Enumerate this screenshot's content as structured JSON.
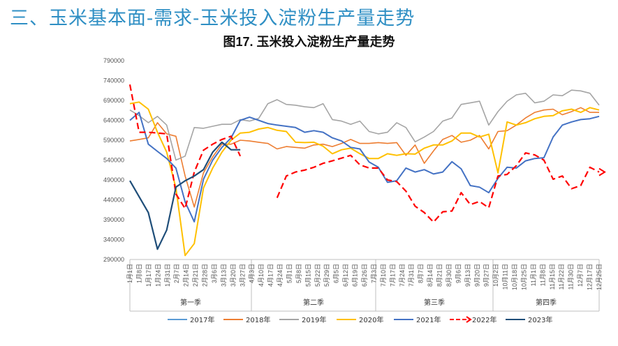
{
  "slide_title": "三、玉米基本面-需求-玉米投入淀粉生产量走势",
  "chart_data": {
    "type": "line",
    "title": "图17. 玉米投入淀粉生产量走势",
    "xlabel": "",
    "ylabel": "",
    "ylim": [
      290000,
      790000
    ],
    "y_ticks": [
      "290000",
      "340000",
      "390000",
      "440000",
      "490000",
      "540000",
      "590000",
      "640000",
      "690000",
      "740000",
      "790000"
    ],
    "grid": false,
    "legend_position": "bottom",
    "quarters": [
      "第一季",
      "第二季",
      "第三季",
      "第四季"
    ],
    "x": [
      "1月1日",
      "1月8日",
      "1月17日",
      "1月24日",
      "1月31日",
      "2月7日",
      "2月14日",
      "2月21日",
      "2月28日",
      "3月6日",
      "3月13日",
      "3月20日",
      "3月27日",
      "4月3日",
      "4月10日",
      "4月17日",
      "4月24日",
      "5月1日",
      "5月8日",
      "5月15日",
      "5月22日",
      "5月29日",
      "6月5日",
      "6月12日",
      "6月19日",
      "6月26日",
      "7月3日",
      "7月10日",
      "7月17日",
      "7月24日",
      "7月31日",
      "8月7日",
      "8月14日",
      "8月21日",
      "8月30日",
      "9月6日",
      "9月13日",
      "9月20日",
      "9月27日",
      "10月4日",
      "10月11日",
      "10月18日",
      "10月25日",
      "11月1日",
      "11月8日",
      "11月15日",
      "11月22日",
      "11月29日",
      "12月6日",
      "12月13日",
      "12月20日",
      "12月27日"
    ],
    "x_tick_labels": [
      "1月1日",
      "1月8日",
      "1月17日",
      "1月24日",
      "1月31日",
      "2月7日",
      "2月14日",
      "2月21日",
      "2月28日",
      "3月6日",
      "3月13日",
      "3月20日",
      "3月27日",
      "4月3日",
      "4月10日",
      "4月17日",
      "4月24日",
      "5月1日",
      "5月8日",
      "5月15日",
      "5月22日",
      "5月29日",
      "6月5日",
      "6月12日",
      "6月19日",
      "6月26日",
      "7月3日",
      "7月10日",
      "7月17日",
      "7月24日",
      "7月31日",
      "8月7日",
      "8月14日",
      "8月21日",
      "8月30日",
      "9月6日",
      "9月13日",
      "9月20日",
      "9月27日",
      "10月2日",
      "10月11日",
      "10月18日",
      "10月25日",
      "11月1日",
      "11月8日",
      "11月15日",
      "11月22日",
      "11月30日",
      "12月7日",
      "12月17日",
      "12月25日"
    ],
    "series": [
      {
        "name": "2017年",
        "color": "#5b9bd5",
        "dash": "",
        "width": 1.6,
        "values": [
          null,
          null,
          null,
          null,
          null,
          null,
          null,
          null,
          null,
          null,
          null,
          null,
          null,
          null,
          null,
          null,
          null,
          null,
          null,
          null,
          null,
          null,
          null,
          null,
          null,
          null,
          null,
          null,
          null,
          null,
          null,
          null,
          null,
          null,
          null,
          null,
          null,
          null,
          null,
          null,
          null,
          null,
          null,
          null,
          null,
          null,
          null,
          null,
          null,
          null,
          null,
          null
        ]
      },
      {
        "name": "2018年",
        "color": "#ed7d31",
        "dash": "",
        "width": 1.6,
        "values": [
          588000,
          592000,
          596000,
          634000,
          606000,
          600000,
          500000,
          422000,
          508000,
          548000,
          580000,
          580000,
          590000,
          588000,
          585000,
          582000,
          568000,
          574000,
          572000,
          570000,
          578000,
          580000,
          574000,
          582000,
          592000,
          582000,
          582000,
          584000,
          582000,
          584000,
          552000,
          578000,
          532000,
          563000,
          592000,
          602000,
          585000,
          590000,
          602000,
          568000,
          612000,
          614000,
          628000,
          646000,
          660000,
          666000,
          668000,
          654000,
          662000,
          672000,
          660000,
          660000
        ]
      },
      {
        "name": "2019年",
        "color": "#a5a5a5",
        "dash": "",
        "width": 1.6,
        "values": [
          666000,
          652000,
          634000,
          650000,
          628000,
          540000,
          550000,
          622000,
          620000,
          625000,
          630000,
          630000,
          642000,
          638000,
          645000,
          682000,
          692000,
          680000,
          678000,
          674000,
          672000,
          682000,
          642000,
          638000,
          630000,
          638000,
          612000,
          606000,
          610000,
          634000,
          622000,
          586000,
          598000,
          612000,
          638000,
          646000,
          680000,
          684000,
          688000,
          628000,
          662000,
          688000,
          704000,
          708000,
          684000,
          688000,
          704000,
          702000,
          716000,
          714000,
          708000,
          678000
        ]
      },
      {
        "name": "2020年",
        "color": "#ffc000",
        "dash": "",
        "width": 2,
        "values": [
          682000,
          686000,
          668000,
          610000,
          560000,
          470000,
          300000,
          330000,
          470000,
          520000,
          560000,
          590000,
          608000,
          610000,
          618000,
          622000,
          615000,
          612000,
          585000,
          584000,
          585000,
          575000,
          556000,
          566000,
          570000,
          556000,
          544000,
          544000,
          556000,
          552000,
          556000,
          555000,
          570000,
          578000,
          578000,
          588000,
          608000,
          608000,
          598000,
          605000,
          508000,
          636000,
          628000,
          634000,
          644000,
          650000,
          652000,
          664000,
          668000,
          660000,
          672000,
          666000
        ]
      },
      {
        "name": "2021年",
        "color": "#4472c4",
        "dash": "",
        "width": 2,
        "values": [
          640000,
          660000,
          580000,
          562000,
          544000,
          520000,
          435000,
          385000,
          492000,
          540000,
          572000,
          596000,
          640000,
          648000,
          640000,
          632000,
          628000,
          625000,
          622000,
          610000,
          614000,
          610000,
          596000,
          588000,
          572000,
          568000,
          535000,
          522000,
          484000,
          488000,
          520000,
          510000,
          516000,
          505000,
          510000,
          536000,
          518000,
          476000,
          472000,
          458000,
          494000,
          522000,
          520000,
          538000,
          544000,
          546000,
          598000,
          628000,
          636000,
          642000,
          644000,
          650000
        ]
      },
      {
        "name": "2022年",
        "color": "#ff0000",
        "dash": "9 5",
        "width": 2.2,
        "values": [
          730000,
          610000,
          610000,
          608000,
          606000,
          455000,
          418000,
          510000,
          565000,
          580000,
          592000,
          600000,
          550000,
          null,
          null,
          null,
          445000,
          500000,
          510000,
          515000,
          522000,
          532000,
          538000,
          545000,
          552000,
          528000,
          520000,
          520000,
          490000,
          486000,
          462000,
          424000,
          408000,
          384000,
          410000,
          412000,
          458000,
          428000,
          436000,
          420000,
          500000,
          504000,
          526000,
          558000,
          553000,
          540000,
          492000,
          500000,
          468000,
          476000,
          522000,
          510000
        ]
      },
      {
        "name": "2023年",
        "color": "#1f4e79",
        "dash": "",
        "width": 2.2,
        "values": [
          488000,
          448000,
          408000,
          316000,
          364000,
          472000,
          488000,
          500000,
          516000,
          560000,
          585000,
          566000,
          566000,
          null,
          null,
          null,
          null,
          null,
          null,
          null,
          null,
          null,
          null,
          null,
          null,
          null,
          null,
          null,
          null,
          null,
          null,
          null,
          null,
          null,
          null,
          null,
          null,
          null,
          null,
          null,
          null,
          null,
          null,
          null,
          null,
          null,
          null,
          null,
          null,
          null,
          null,
          null
        ]
      }
    ]
  }
}
